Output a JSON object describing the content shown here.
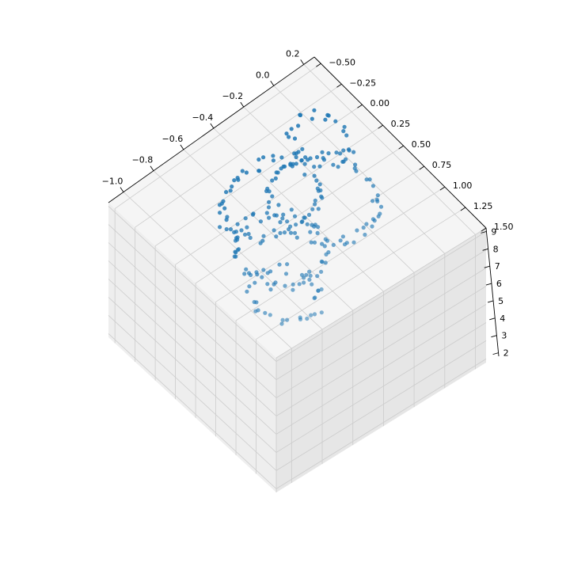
{
  "chart_data": {
    "type": "scatter",
    "projection": "3d",
    "title": "",
    "xlabel": "",
    "ylabel": "",
    "zlabel": "",
    "grid": true,
    "axes": {
      "x": {
        "ticks": [
          -1.0,
          -0.8,
          -0.6,
          -0.4,
          -0.2,
          0.0,
          0.2
        ],
        "tick_labels": [
          "−1.0",
          "−0.8",
          "−0.6",
          "−0.4",
          "−0.2",
          "0.0",
          "0.2"
        ]
      },
      "y": {
        "ticks": [
          -0.5,
          -0.25,
          0.0,
          0.25,
          0.5,
          0.75,
          1.0,
          1.25,
          1.5
        ],
        "tick_labels": [
          "−0.50",
          "−0.25",
          "0.00",
          "0.25",
          "0.50",
          "0.75",
          "1.00",
          "1.25",
          "1.50"
        ]
      },
      "z": {
        "ticks": [
          2,
          3,
          4,
          5,
          6,
          7,
          8,
          9
        ],
        "tick_labels": [
          "2",
          "3",
          "4",
          "5",
          "6",
          "7",
          "8",
          "9"
        ]
      }
    },
    "series": [
      {
        "color": "#1f77b4",
        "marker": "circle",
        "point_count": 250
      }
    ]
  },
  "colors": {
    "point": "#1f77b4",
    "pane_light": "#f5f5f5",
    "pane_mid": "#eeeeee",
    "pane_dark": "#e6e6e6",
    "grid": "#cccccc"
  }
}
